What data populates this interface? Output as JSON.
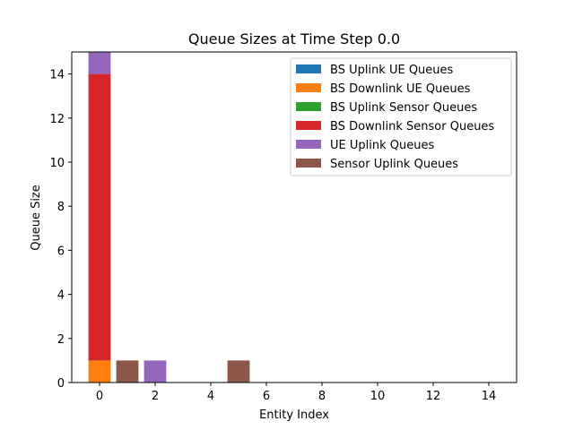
{
  "chart_data": {
    "type": "bar",
    "title": "Queue Sizes at Time Step 0.0",
    "xlabel": "Entity Index",
    "ylabel": "Queue Size",
    "xlim": [
      -1.0,
      15.0
    ],
    "ylim": [
      0,
      15
    ],
    "xticks": [
      "0",
      "2",
      "4",
      "6",
      "8",
      "10",
      "12",
      "14"
    ],
    "yticks": [
      "0",
      "2",
      "4",
      "6",
      "8",
      "10",
      "12",
      "14"
    ],
    "legend_position": "upper right",
    "grid": false,
    "series": [
      {
        "name": "BS Uplink UE Queues",
        "color": "#1f77b4",
        "bars": []
      },
      {
        "name": "BS Downlink UE Queues",
        "color": "#ff7f0e",
        "bars": [
          {
            "x": 0,
            "bottom": 0,
            "height": 1
          }
        ]
      },
      {
        "name": "BS Uplink Sensor Queues",
        "color": "#2ca02c",
        "bars": []
      },
      {
        "name": "BS Downlink Sensor Queues",
        "color": "#d62728",
        "bars": [
          {
            "x": 0,
            "bottom": 1,
            "height": 13
          }
        ]
      },
      {
        "name": "UE Uplink Queues",
        "color": "#9467bd",
        "bars": [
          {
            "x": 0,
            "bottom": 14,
            "height": 1
          },
          {
            "x": 2,
            "bottom": 0,
            "height": 1
          }
        ]
      },
      {
        "name": "Sensor Uplink Queues",
        "color": "#8c564b",
        "bars": [
          {
            "x": 1,
            "bottom": 0,
            "height": 1
          },
          {
            "x": 5,
            "bottom": 0,
            "height": 1
          }
        ]
      }
    ]
  }
}
